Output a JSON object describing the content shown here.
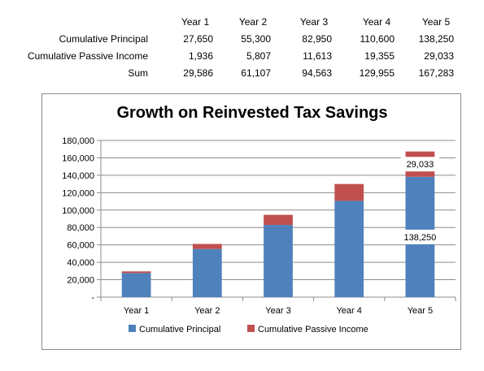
{
  "table": {
    "years": [
      "Year 1",
      "Year 2",
      "Year 3",
      "Year 4",
      "Year 5"
    ],
    "rows": [
      {
        "label": "Cumulative Principal",
        "values": [
          "27,650",
          "55,300",
          "82,950",
          "110,600",
          "138,250"
        ]
      },
      {
        "label": "Cumulative Passive Income",
        "values": [
          "1,936",
          "5,807",
          "11,613",
          "19,355",
          "29,033"
        ]
      },
      {
        "label": "Sum",
        "values": [
          "29,586",
          "61,107",
          "94,563",
          "129,955",
          "167,283"
        ]
      }
    ]
  },
  "chart_data": {
    "type": "bar",
    "stacked": true,
    "title": "Growth on Reinvested Tax Savings",
    "categories": [
      "Year 1",
      "Year 2",
      "Year 3",
      "Year 4",
      "Year 5"
    ],
    "series": [
      {
        "name": "Cumulative Principal",
        "color": "#4f81bd",
        "values": [
          27650,
          55300,
          82950,
          110600,
          138250
        ]
      },
      {
        "name": "Cumulative Passive Income",
        "color": "#c0504d",
        "values": [
          1936,
          5807,
          11613,
          19355,
          29033
        ]
      }
    ],
    "ylim": [
      0,
      180000
    ],
    "yticks": [
      "-",
      "20,000",
      "40,000",
      "60,000",
      "80,000",
      "100,000",
      "120,000",
      "140,000",
      "160,000",
      "180,000"
    ],
    "grid": true,
    "legend": "bottom",
    "data_labels": [
      {
        "series": 0,
        "category": 4,
        "text": "138,250"
      },
      {
        "series": 1,
        "category": 4,
        "text": "29,033"
      }
    ]
  }
}
